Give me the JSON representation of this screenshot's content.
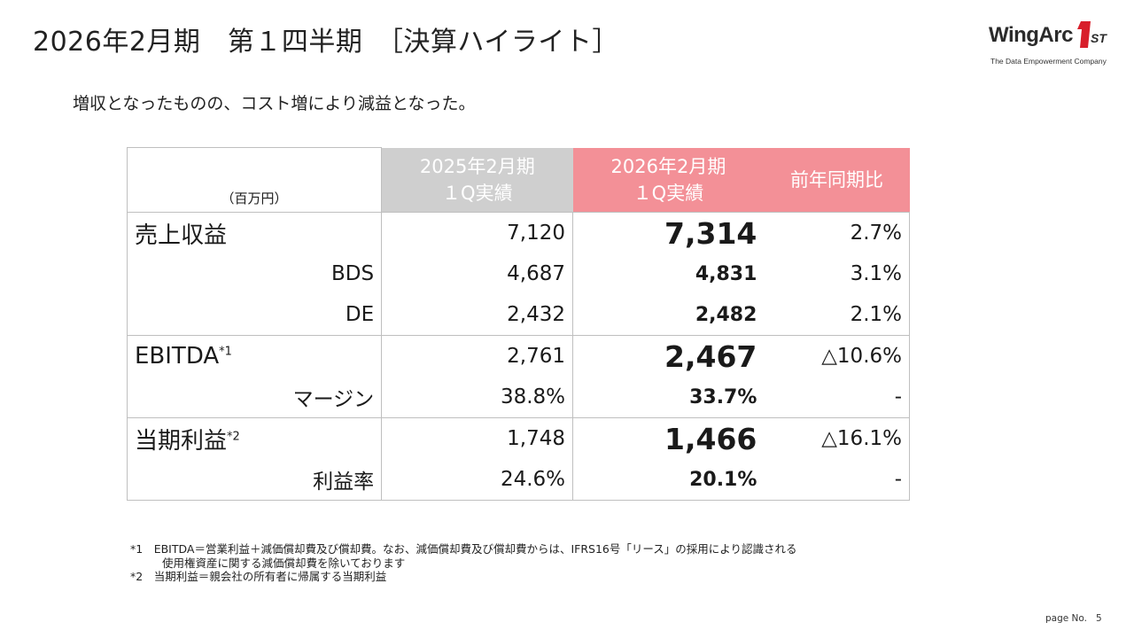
{
  "title": "2026年2月期　第１四半期　［決算ハイライト］",
  "logo": {
    "brand": "WingArc",
    "mark": "1",
    "suffix": "ST",
    "tagline": "The Data Empowerment Company",
    "color": "#d81e2a"
  },
  "subtitle": "増収となったものの、コスト増により減益となった。",
  "table": {
    "unit": "（百万円）",
    "col_prev": [
      "2025年2月期",
      "１Q実績"
    ],
    "col_cur": [
      "2026年2月期",
      "１Q実績"
    ],
    "col_yoy": "前年同期比",
    "colors": {
      "prev_header": "#cfcfcf",
      "cur_header": "#f39097"
    },
    "rows": [
      {
        "label": "売上収益",
        "note": "",
        "prev": "7,120",
        "cur": "7,314",
        "yoy": "2.7%"
      },
      {
        "label": "BDS",
        "note": "",
        "prev": "4,687",
        "cur": "4,831",
        "yoy": "3.1%"
      },
      {
        "label": "DE",
        "note": "",
        "prev": "2,432",
        "cur": "2,482",
        "yoy": "2.1%"
      },
      {
        "label": "EBITDA",
        "note": "*1",
        "prev": "2,761",
        "cur": "2,467",
        "yoy": "△10.6%"
      },
      {
        "label": "マージン",
        "note": "",
        "prev": "38.8%",
        "cur": "33.7%",
        "yoy": "-"
      },
      {
        "label": "当期利益",
        "note": "*2",
        "prev": "1,748",
        "cur": "1,466",
        "yoy": "△16.1%"
      },
      {
        "label": "利益率",
        "note": "",
        "prev": "24.6%",
        "cur": "20.1%",
        "yoy": "-"
      }
    ]
  },
  "notes": {
    "n1_line1": "*1　EBITDA＝営業利益＋減価償却費及び償却費。なお、減価償却費及び償却費からは、IFRS16号「リース」の採用により認識される",
    "n1_line2": "使用権資産に関する減価償却費を除いております",
    "n2": "*2　当期利益＝親会社の所有者に帰属する当期利益"
  },
  "page": {
    "label": "page No.",
    "number": "5"
  }
}
